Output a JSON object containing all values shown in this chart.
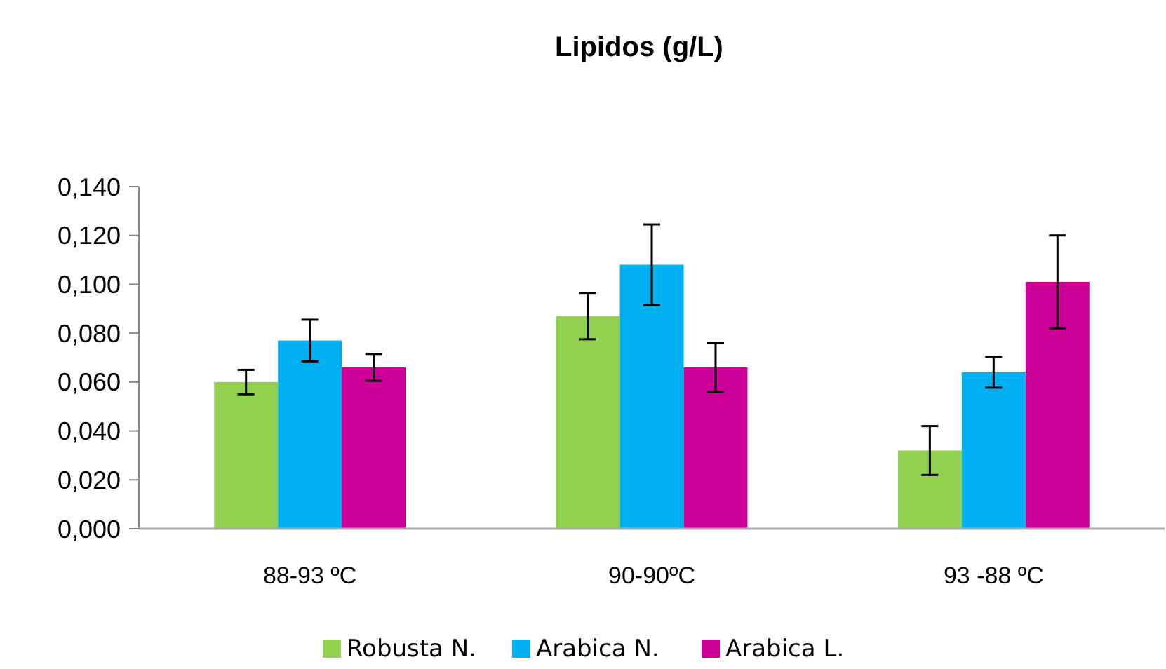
{
  "chart_data": {
    "type": "bar",
    "title": "Lipidos  (g/L)",
    "categories": [
      "88-93 ºC",
      "90-90ºC",
      "93 -88 ºC"
    ],
    "series": [
      {
        "name": "Robusta N.",
        "color": "#92d050",
        "values": [
          0.06,
          0.087,
          0.032
        ],
        "errors": [
          0.005,
          0.0095,
          0.01
        ]
      },
      {
        "name": "Arabica N.",
        "color": "#00b0f0",
        "values": [
          0.077,
          0.108,
          0.064
        ],
        "errors": [
          0.0085,
          0.0165,
          0.0063
        ]
      },
      {
        "name": "Arabica L.",
        "color": "#cc0099",
        "values": [
          0.066,
          0.066,
          0.101
        ],
        "errors": [
          0.0055,
          0.01,
          0.019
        ]
      }
    ],
    "ylim": [
      0,
      0.14
    ],
    "yticks": [
      {
        "value": 0,
        "label": "0,000"
      },
      {
        "value": 0.02,
        "label": "0,020"
      },
      {
        "value": 0.04,
        "label": "0,040"
      },
      {
        "value": 0.06,
        "label": "0,060"
      },
      {
        "value": 0.08,
        "label": "0,080"
      },
      {
        "value": 0.1,
        "label": "0,100"
      },
      {
        "value": 0.12,
        "label": "0,120"
      },
      {
        "value": 0.14,
        "label": "0,140"
      }
    ],
    "legend": "bottom"
  }
}
